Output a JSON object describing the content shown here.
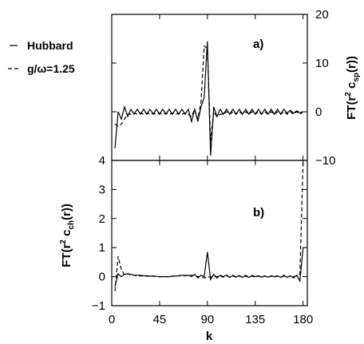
{
  "legend": {
    "entries": [
      {
        "label": "Hubbard",
        "style": "solid"
      },
      {
        "label": "g/ω=1.25",
        "style": "dashed"
      }
    ]
  },
  "chart_data": [
    {
      "type": "line",
      "panel_label": "a)",
      "ylabel": "FT(r² c_sp(r))",
      "ylabel_main": "FT(r",
      "ylabel_sup": "2",
      "ylabel_mid": " c",
      "ylabel_sub": "sp",
      "ylabel_end": "(r))",
      "yaxis_side": "right",
      "ylim": [
        -10,
        20
      ],
      "yticks": [
        -10,
        0,
        10,
        20
      ],
      "ytick_labels": [
        "−10",
        "0",
        "10",
        "20"
      ],
      "xlim": [
        0,
        184
      ],
      "series": [
        {
          "name": "Hubbard",
          "style": "solid",
          "x": [
            3,
            6,
            9,
            12,
            15,
            18,
            21,
            24,
            27,
            30,
            33,
            36,
            39,
            42,
            45,
            48,
            51,
            54,
            57,
            60,
            63,
            66,
            69,
            72,
            75,
            78,
            81,
            84,
            87,
            90,
            93,
            96,
            99,
            102,
            105,
            108,
            111,
            114,
            117,
            120,
            123,
            126,
            129,
            132,
            135,
            138,
            141,
            144,
            147,
            150,
            153,
            156,
            159,
            162,
            165,
            168,
            171,
            174,
            177,
            180
          ],
          "values": [
            -7.5,
            0,
            -1.5,
            1,
            -1,
            0.5,
            -0.5,
            0.5,
            -0.5,
            0.5,
            -0.5,
            0.5,
            -0.5,
            0.5,
            -0.5,
            0.5,
            -0.5,
            0.5,
            -0.5,
            0.5,
            -0.5,
            0.5,
            -0.5,
            0.5,
            -2,
            0.5,
            -2,
            1,
            3,
            14.5,
            -9,
            1,
            -1,
            0.5,
            -0.5,
            0.5,
            -0.5,
            0.5,
            -0.5,
            0.5,
            -0.5,
            0.5,
            -0.5,
            0.5,
            -0.5,
            0.5,
            -0.5,
            0.5,
            -0.5,
            0.5,
            -0.5,
            0.5,
            -0.5,
            0.5,
            -0.3,
            0.3,
            -0.3,
            0.2,
            -0.2,
            0
          ]
        },
        {
          "name": "g/ω=1.25",
          "style": "dashed",
          "x": [
            3,
            6,
            9,
            12,
            15,
            18,
            21,
            24,
            27,
            30,
            33,
            36,
            39,
            42,
            45,
            48,
            51,
            54,
            57,
            60,
            63,
            66,
            69,
            72,
            75,
            78,
            81,
            84,
            87,
            90,
            93,
            96,
            99,
            102,
            105,
            108,
            111,
            114,
            117,
            120,
            123,
            126,
            129,
            132,
            135,
            138,
            141,
            144,
            147,
            150,
            153,
            156,
            159,
            162,
            165,
            168,
            171,
            174,
            177,
            180
          ],
          "values": [
            -2.5,
            -3,
            -2.5,
            -1.5,
            -0.5,
            -0.5,
            -0.3,
            -0.5,
            -0.3,
            -0.5,
            -0.3,
            -0.5,
            -0.3,
            -0.5,
            -0.3,
            -0.5,
            -0.3,
            -0.5,
            -0.3,
            -0.5,
            -0.3,
            -0.5,
            -0.3,
            -0.5,
            -1,
            0.5,
            -1.5,
            2,
            13.5,
            13,
            -6,
            0,
            -1,
            -0.5,
            -0.5,
            0,
            -0.5,
            0,
            -0.5,
            0,
            -0.5,
            0,
            -0.5,
            0,
            -0.5,
            0,
            -0.5,
            0,
            -0.5,
            0,
            -0.5,
            0,
            -0.5,
            0,
            -0.5,
            0,
            -0.5,
            0,
            -0.5,
            0
          ]
        }
      ]
    },
    {
      "type": "line",
      "panel_label": "b)",
      "ylabel": "FT(r² c_ch(r))",
      "ylabel_main": "FT(r",
      "ylabel_sup": "2",
      "ylabel_mid": " c",
      "ylabel_sub": "ch",
      "ylabel_end": "(r))",
      "yaxis_side": "left",
      "ylim": [
        -1,
        4
      ],
      "yticks": [
        -1,
        0,
        1,
        2,
        3,
        4
      ],
      "ytick_labels": [
        "−1",
        "0",
        "1",
        "2",
        "3",
        "4"
      ],
      "xlabel": "k",
      "xlim": [
        0,
        184
      ],
      "xticks": [
        0,
        45,
        90,
        135,
        180
      ],
      "xtick_labels": [
        "0",
        "45",
        "90",
        "135",
        "180"
      ],
      "series": [
        {
          "name": "Hubbard",
          "style": "solid",
          "x": [
            3,
            6,
            9,
            12,
            15,
            18,
            21,
            24,
            27,
            30,
            33,
            36,
            39,
            42,
            45,
            48,
            51,
            54,
            57,
            60,
            63,
            66,
            69,
            72,
            75,
            78,
            81,
            84,
            87,
            90,
            93,
            96,
            99,
            102,
            105,
            108,
            111,
            114,
            117,
            120,
            123,
            126,
            129,
            132,
            135,
            138,
            141,
            144,
            147,
            150,
            153,
            156,
            159,
            162,
            165,
            168,
            171,
            174,
            177,
            180
          ],
          "values": [
            -0.35,
            0.1,
            0,
            0.08,
            0.1,
            0.08,
            0.05,
            0.05,
            0.05,
            0.03,
            0.03,
            0.02,
            0.02,
            0.01,
            0,
            0,
            0,
            0,
            0.02,
            0.02,
            0.03,
            0.05,
            0.04,
            0.05,
            0,
            0.08,
            -0.05,
            0.05,
            0,
            0.85,
            -0.1,
            0.08,
            -0.05,
            0.05,
            0,
            0.06,
            -0.03,
            0.05,
            -0.02,
            0.04,
            -0.03,
            0.05,
            -0.03,
            0.04,
            0,
            0.03,
            -0.02,
            0.03,
            -0.02,
            0.03,
            0,
            0.03,
            -0.03,
            0.05,
            -0.03,
            0.03,
            -0.05,
            0.05,
            -0.15,
            1.0
          ]
        },
        {
          "name": "g/ω=1.25",
          "style": "dashed",
          "x": [
            3,
            6,
            9,
            12,
            15,
            18,
            21,
            24,
            27,
            30,
            33,
            36,
            39,
            42,
            45,
            48,
            51,
            54,
            57,
            60,
            63,
            66,
            69,
            72,
            75,
            78,
            81,
            84,
            87,
            90,
            93,
            96,
            99,
            102,
            105,
            108,
            111,
            114,
            117,
            120,
            123,
            126,
            129,
            132,
            135,
            138,
            141,
            144,
            147,
            150,
            153,
            156,
            159,
            162,
            165,
            168,
            171,
            174,
            177,
            180
          ],
          "values": [
            -0.5,
            0.7,
            0.25,
            0.05,
            0.1,
            0.05,
            0.05,
            0.02,
            0.03,
            0.02,
            0.02,
            0.01,
            0.01,
            0,
            0,
            0,
            0,
            0,
            0.01,
            0.02,
            0.03,
            0.03,
            0.03,
            0.04,
            0.05,
            0.02,
            0,
            0,
            -0.05,
            0,
            -0.02,
            0.02,
            0,
            0.02,
            -0.02,
            0.02,
            -0.02,
            0.02,
            -0.02,
            0.02,
            -0.02,
            0.02,
            -0.02,
            0.02,
            -0.02,
            0.02,
            -0.02,
            0.02,
            -0.02,
            0.02,
            -0.02,
            0.02,
            -0.02,
            0.02,
            -0.02,
            0.02,
            0,
            0.02,
            0.1,
            4.0
          ]
        }
      ]
    }
  ]
}
